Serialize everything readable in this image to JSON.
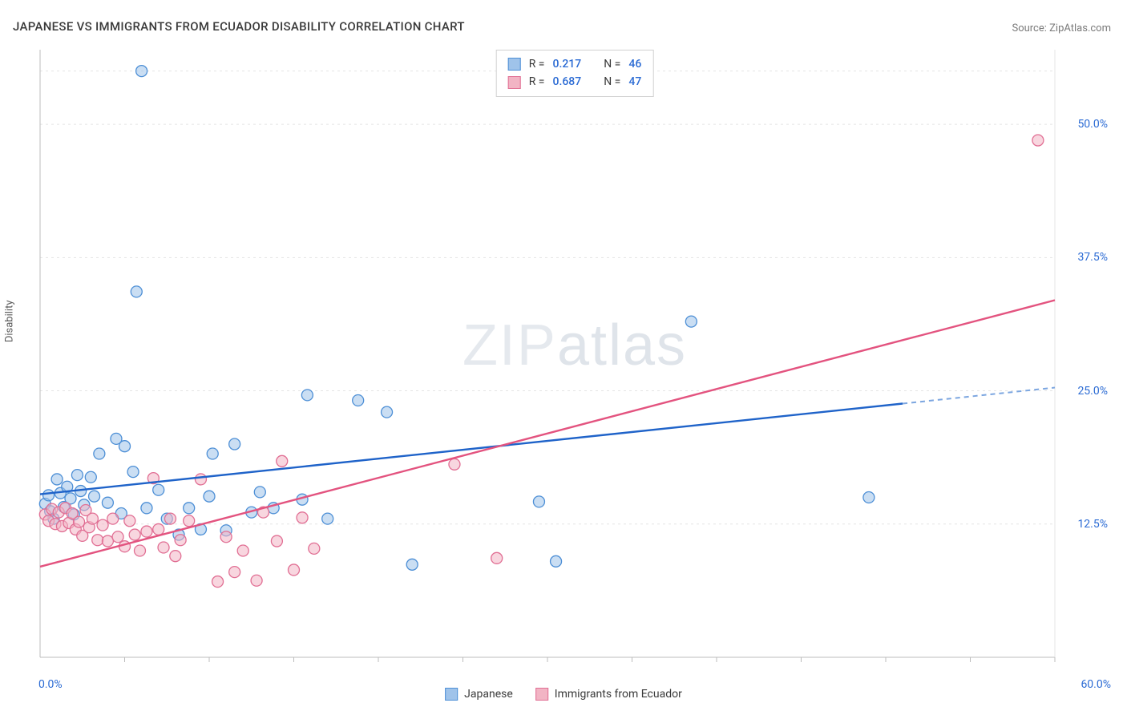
{
  "title": "JAPANESE VS IMMIGRANTS FROM ECUADOR DISABILITY CORRELATION CHART",
  "source": "Source: ZipAtlas.com",
  "ylabel": "Disability",
  "watermark_pre": "ZIP",
  "watermark_post": "atlas",
  "chart": {
    "type": "scatter",
    "xlim": [
      0,
      60
    ],
    "ylim": [
      0,
      57
    ],
    "background_color": "#ffffff",
    "grid_color": "#e4e4e4",
    "axis_color": "#bcbcbc",
    "x_ticks_minor": [
      5,
      10,
      15,
      20,
      25,
      30,
      35,
      40,
      45,
      50,
      55,
      60
    ],
    "y_gridlines": [
      12.5,
      25.0,
      37.5,
      50.0
    ],
    "y_top_dash": 55,
    "x_axis_label_min": "0.0%",
    "x_axis_label_max": "60.0%",
    "y_tick_labels": [
      {
        "v": 12.5,
        "t": "12.5%"
      },
      {
        "v": 25.0,
        "t": "25.0%"
      },
      {
        "v": 37.5,
        "t": "37.5%"
      },
      {
        "v": 50.0,
        "t": "50.0%"
      }
    ],
    "series": [
      {
        "name": "Japanese",
        "label": "Japanese",
        "fill": "#9fc3ea",
        "fill_opacity": 0.55,
        "stroke": "#4d8fd6",
        "line_color": "#1f63c9",
        "line_dash_color": "#7ca6e0",
        "marker_r": 7,
        "R": "0.217",
        "N": "46",
        "trend": {
          "x1": 0,
          "y1": 15.3,
          "x2": 51,
          "y2": 23.8,
          "dash_to_x": 60,
          "dash_to_y": 25.3
        },
        "points": [
          [
            0.3,
            14.4
          ],
          [
            0.5,
            15.2
          ],
          [
            0.6,
            13.7
          ],
          [
            0.8,
            13.0
          ],
          [
            1.0,
            16.7
          ],
          [
            1.2,
            15.4
          ],
          [
            1.4,
            14.1
          ],
          [
            1.6,
            16.0
          ],
          [
            1.8,
            14.9
          ],
          [
            2.0,
            13.4
          ],
          [
            2.2,
            17.1
          ],
          [
            2.4,
            15.6
          ],
          [
            2.6,
            14.3
          ],
          [
            3.0,
            16.9
          ],
          [
            3.2,
            15.1
          ],
          [
            3.5,
            19.1
          ],
          [
            4.0,
            14.5
          ],
          [
            4.5,
            20.5
          ],
          [
            4.8,
            13.5
          ],
          [
            5.0,
            19.8
          ],
          [
            5.5,
            17.4
          ],
          [
            5.7,
            34.3
          ],
          [
            6.0,
            55.0
          ],
          [
            6.3,
            14.0
          ],
          [
            7.0,
            15.7
          ],
          [
            7.5,
            13.0
          ],
          [
            8.2,
            11.5
          ],
          [
            8.8,
            14.0
          ],
          [
            9.5,
            12.0
          ],
          [
            10.0,
            15.1
          ],
          [
            10.2,
            19.1
          ],
          [
            11.0,
            11.9
          ],
          [
            11.5,
            20.0
          ],
          [
            12.5,
            13.6
          ],
          [
            13.0,
            15.5
          ],
          [
            13.8,
            14.0
          ],
          [
            15.5,
            14.8
          ],
          [
            15.8,
            24.6
          ],
          [
            17.0,
            13.0
          ],
          [
            18.8,
            24.1
          ],
          [
            20.5,
            23.0
          ],
          [
            22.0,
            8.7
          ],
          [
            29.5,
            14.6
          ],
          [
            30.5,
            9.0
          ],
          [
            38.5,
            31.5
          ],
          [
            49.0,
            15.0
          ]
        ]
      },
      {
        "name": "Immigrants from Ecuador",
        "label": "Immigrants from Ecuador",
        "fill": "#f2b4c4",
        "fill_opacity": 0.55,
        "stroke": "#e16f94",
        "line_color": "#e3537f",
        "marker_r": 7,
        "R": "0.687",
        "N": "47",
        "trend": {
          "x1": 0,
          "y1": 8.5,
          "x2": 60,
          "y2": 33.5
        },
        "points": [
          [
            0.3,
            13.4
          ],
          [
            0.5,
            12.8
          ],
          [
            0.7,
            13.9
          ],
          [
            0.9,
            12.5
          ],
          [
            1.1,
            13.6
          ],
          [
            1.3,
            12.3
          ],
          [
            1.5,
            14.0
          ],
          [
            1.7,
            12.6
          ],
          [
            1.9,
            13.5
          ],
          [
            2.1,
            12.0
          ],
          [
            2.3,
            12.7
          ],
          [
            2.5,
            11.4
          ],
          [
            2.7,
            13.8
          ],
          [
            2.9,
            12.2
          ],
          [
            3.1,
            13.0
          ],
          [
            3.4,
            11.0
          ],
          [
            3.7,
            12.4
          ],
          [
            4.0,
            10.9
          ],
          [
            4.3,
            13.0
          ],
          [
            4.6,
            11.3
          ],
          [
            5.0,
            10.4
          ],
          [
            5.3,
            12.8
          ],
          [
            5.6,
            11.5
          ],
          [
            5.9,
            10.0
          ],
          [
            6.3,
            11.8
          ],
          [
            6.7,
            16.8
          ],
          [
            7.0,
            12.0
          ],
          [
            7.3,
            10.3
          ],
          [
            7.7,
            13.0
          ],
          [
            8.0,
            9.5
          ],
          [
            8.3,
            11.0
          ],
          [
            8.8,
            12.8
          ],
          [
            9.5,
            16.7
          ],
          [
            10.5,
            7.1
          ],
          [
            11.0,
            11.3
          ],
          [
            11.5,
            8.0
          ],
          [
            12.0,
            10.0
          ],
          [
            12.8,
            7.2
          ],
          [
            13.2,
            13.6
          ],
          [
            14.0,
            10.9
          ],
          [
            14.3,
            18.4
          ],
          [
            15.0,
            8.2
          ],
          [
            15.5,
            13.1
          ],
          [
            16.2,
            10.2
          ],
          [
            24.5,
            18.1
          ],
          [
            27.0,
            9.3
          ],
          [
            59.0,
            48.5
          ]
        ]
      }
    ]
  },
  "legend_top": {
    "r_prefix": "R  =",
    "n_prefix": "N  ="
  }
}
